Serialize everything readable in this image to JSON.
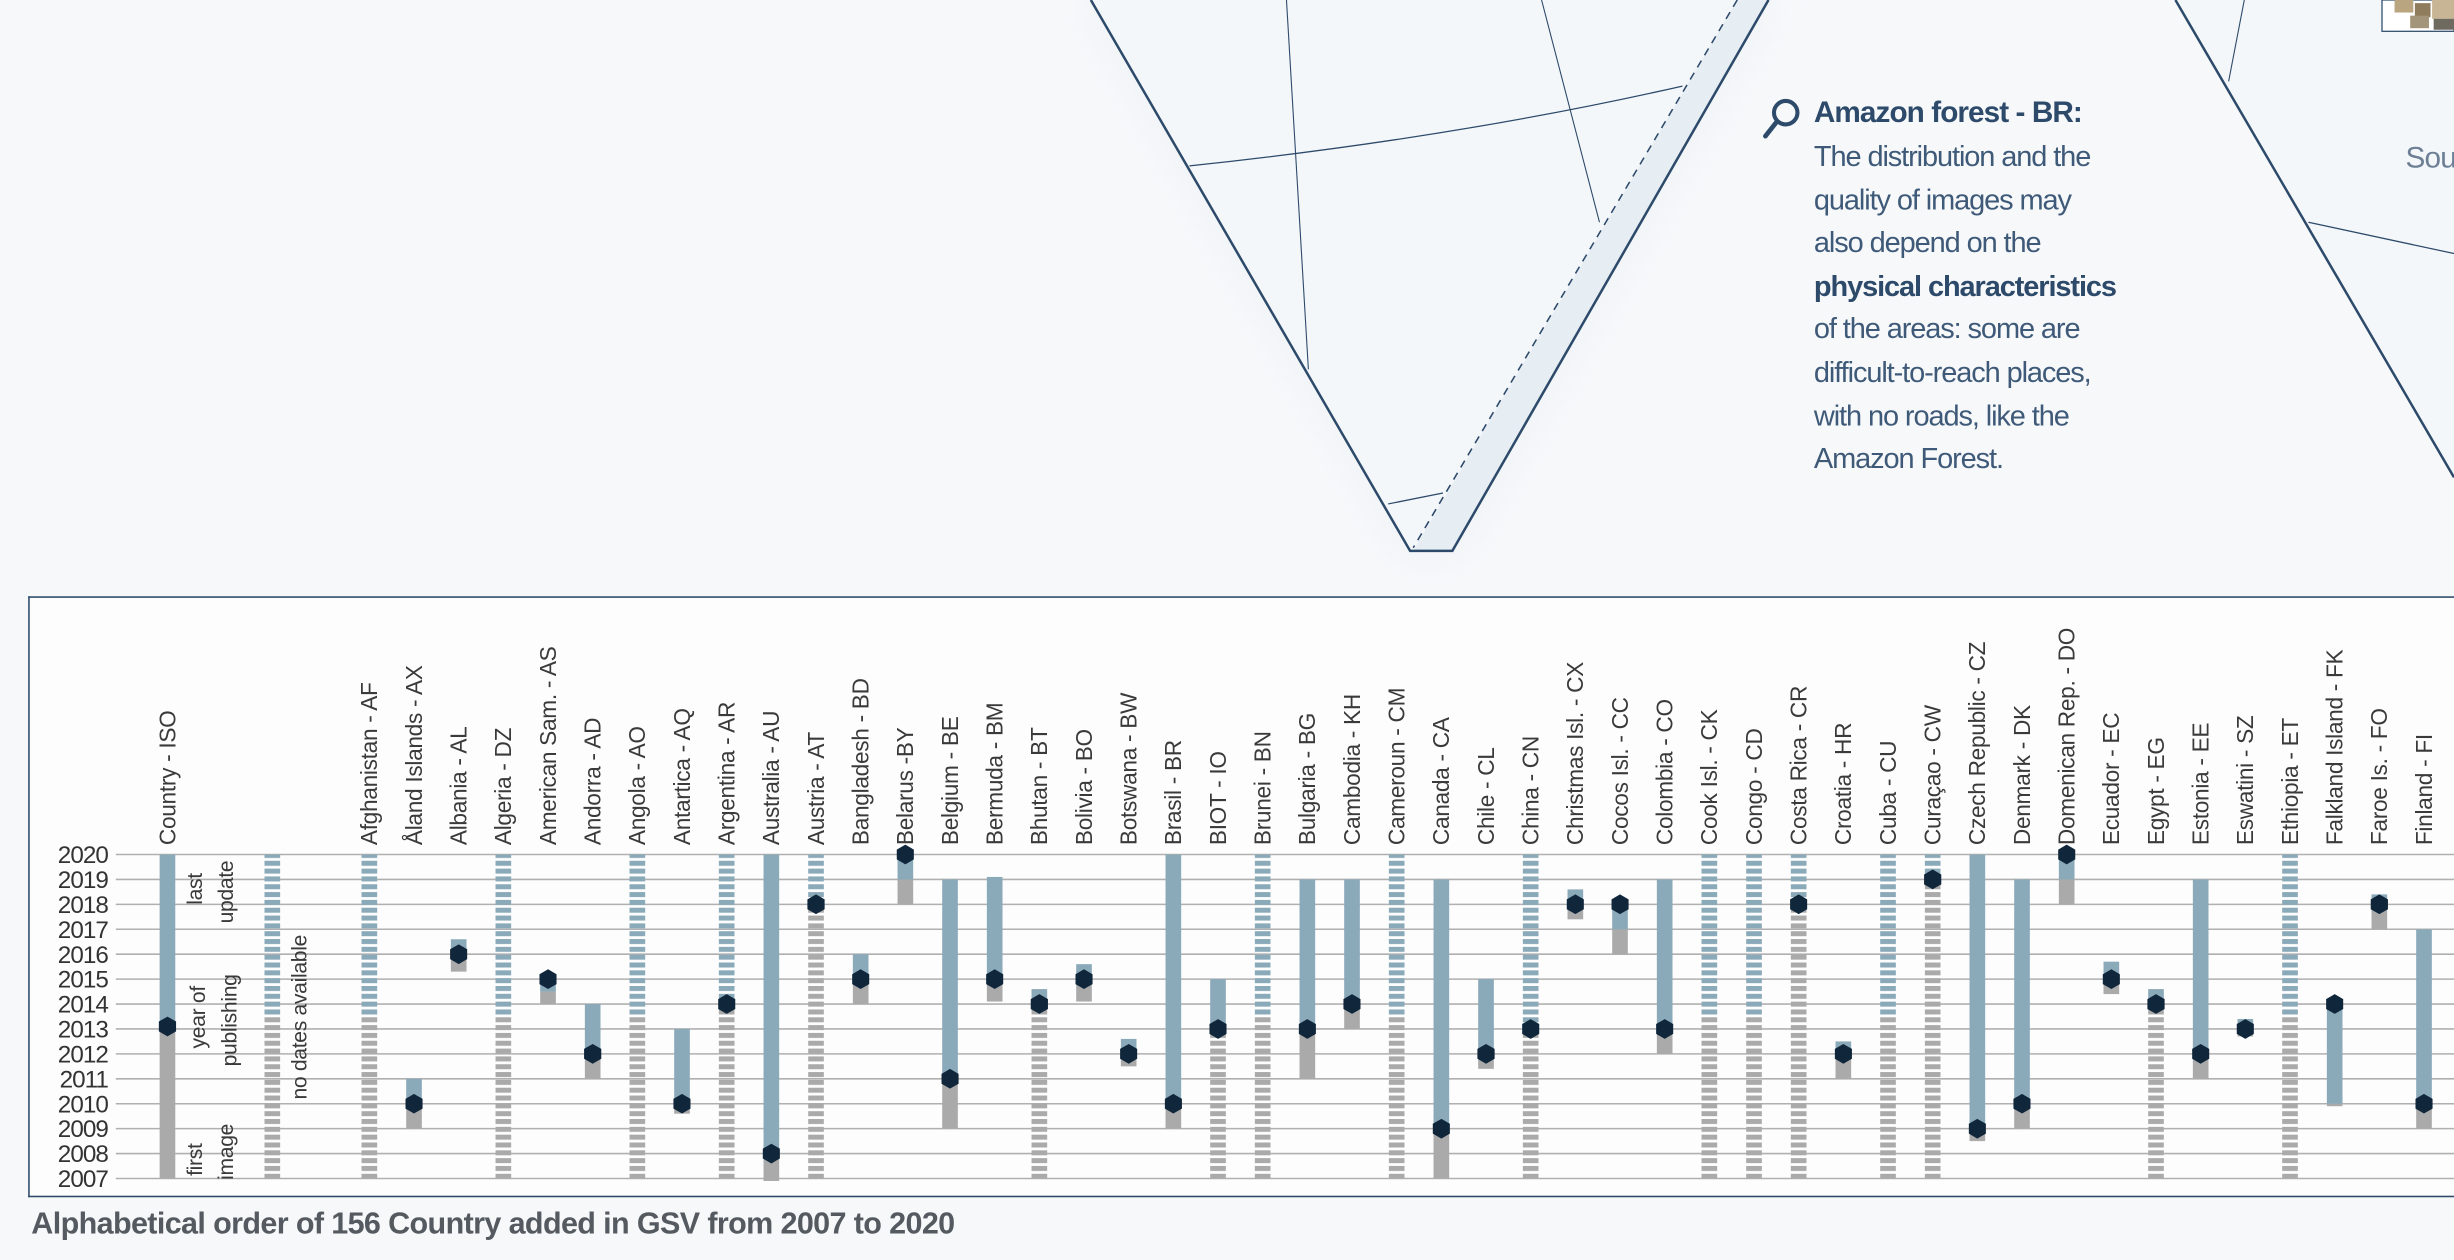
{
  "callout": {
    "icon": "magnifier-icon",
    "title": "Amazon forest - BR:",
    "lines": [
      {
        "text": "The distribution and the",
        "bold": false
      },
      {
        "text": "quality of images may",
        "bold": false
      },
      {
        "text": "also depend on the",
        "bold": false
      },
      {
        "text": "physical characteristics",
        "bold": true
      },
      {
        "text": "of the areas: some are",
        "bold": false
      },
      {
        "text": "difficult-to-reach places,",
        "bold": false
      },
      {
        "text": "with no roads, like the",
        "bold": false
      },
      {
        "text": "Amazon Forest.",
        "bold": false
      }
    ]
  },
  "map_cut_label": "Sou",
  "caption": "Alphabetical order of 156 Country added in GSV from 2007 to 2020",
  "colors": {
    "first_image": "#aaaaaa",
    "last_update": "#8aa9b9",
    "publishing_dot": "#10263a",
    "frame": "#2d4a6a"
  },
  "chart_data": {
    "type": "range-bar",
    "ylim": [
      2007,
      2020
    ],
    "yticks": [
      2020,
      2019,
      2018,
      2017,
      2016,
      2015,
      2014,
      2013,
      2012,
      2011,
      2010,
      2009,
      2008,
      2007
    ],
    "grid": true,
    "legend": {
      "header": "Country - ISO",
      "last_update": [
        "last",
        "update"
      ],
      "year_of_publishing": [
        "year of",
        "publishing"
      ],
      "first_image": [
        "first",
        "image"
      ],
      "no_dates": "no dates available"
    },
    "legend_example": {
      "first": 2007,
      "mid": 2013,
      "last": 2020,
      "pub": 2013.1
    },
    "countries": [
      {
        "label": "Afghanistan - AF",
        "first": 2007,
        "mid": 2013.5,
        "last": 2020,
        "pub": null,
        "gray_dashed": true,
        "blue_dashed": true
      },
      {
        "label": "Åland Islands - AX",
        "first": 2009,
        "mid": 2010,
        "last": 2011,
        "pub": 2010,
        "gray_dashed": false,
        "blue_dashed": false
      },
      {
        "label": "Albania - AL",
        "first": 2015.3,
        "mid": 2016,
        "last": 2016.6,
        "pub": 2016,
        "gray_dashed": false,
        "blue_dashed": false
      },
      {
        "label": "Algeria - DZ",
        "first": 2007,
        "mid": 2013.5,
        "last": 2020,
        "pub": null,
        "gray_dashed": true,
        "blue_dashed": true
      },
      {
        "label": "American Sam. - AS",
        "first": 2014,
        "mid": 2014.5,
        "last": 2015,
        "pub": 2015,
        "gray_dashed": false,
        "blue_dashed": false
      },
      {
        "label": "Andorra - AD",
        "first": 2011,
        "mid": 2012,
        "last": 2014,
        "pub": 2012,
        "gray_dashed": false,
        "blue_dashed": false
      },
      {
        "label": "Angola - AO",
        "first": 2007,
        "mid": 2013.5,
        "last": 2020,
        "pub": null,
        "gray_dashed": true,
        "blue_dashed": true
      },
      {
        "label": "Antartica - AQ",
        "first": 2009.6,
        "mid": 2010,
        "last": 2013,
        "pub": 2010,
        "gray_dashed": false,
        "blue_dashed": false
      },
      {
        "label": "Argentina - AR",
        "first": 2007,
        "mid": 2014,
        "last": 2020,
        "pub": 2014,
        "gray_dashed": true,
        "blue_dashed": true
      },
      {
        "label": "Australia - AU",
        "first": 2006.9,
        "mid": 2008,
        "last": 2020,
        "pub": 2008,
        "gray_dashed": false,
        "blue_dashed": false
      },
      {
        "label": "Austria - AT",
        "first": 2007,
        "mid": 2018,
        "last": 2020,
        "pub": 2018,
        "gray_dashed": true,
        "blue_dashed": true
      },
      {
        "label": "Bangladesh - BD",
        "first": 2014,
        "mid": 2015,
        "last": 2016,
        "pub": 2015,
        "gray_dashed": false,
        "blue_dashed": false
      },
      {
        "label": "Belarus -BY",
        "first": 2018,
        "mid": 2019,
        "last": 2020,
        "pub": 2020,
        "gray_dashed": false,
        "blue_dashed": false
      },
      {
        "label": "Belgium - BE",
        "first": 2009,
        "mid": 2011,
        "last": 2019,
        "pub": 2011,
        "gray_dashed": false,
        "blue_dashed": false
      },
      {
        "label": "Bermuda - BM",
        "first": 2014.1,
        "mid": 2015,
        "last": 2019.1,
        "pub": 2015,
        "gray_dashed": false,
        "blue_dashed": false
      },
      {
        "label": "Bhutan - BT",
        "first": 2007,
        "mid": 2014,
        "last": 2014.6,
        "pub": 2014,
        "gray_dashed": true,
        "blue_dashed": false
      },
      {
        "label": "Bolivia - BO",
        "first": 2014.1,
        "mid": 2015,
        "last": 2015.6,
        "pub": 2015,
        "gray_dashed": false,
        "blue_dashed": false
      },
      {
        "label": "Botswana - BW",
        "first": 2011.5,
        "mid": 2012,
        "last": 2012.6,
        "pub": 2012,
        "gray_dashed": false,
        "blue_dashed": false
      },
      {
        "label": "Brasil - BR",
        "first": 2009,
        "mid": 2010,
        "last": 2020,
        "pub": 2010,
        "gray_dashed": false,
        "blue_dashed": false
      },
      {
        "label": "BIOT - IO",
        "first": 2007,
        "mid": 2012.8,
        "last": 2015,
        "pub": 2013,
        "gray_dashed": true,
        "blue_dashed": false
      },
      {
        "label": "Brunei - BN",
        "first": 2007,
        "mid": 2013.5,
        "last": 2020,
        "pub": null,
        "gray_dashed": true,
        "blue_dashed": true
      },
      {
        "label": "Bulgaria - BG",
        "first": 2011,
        "mid": 2013,
        "last": 2019,
        "pub": 2013,
        "gray_dashed": false,
        "blue_dashed": false
      },
      {
        "label": "Cambodia - KH",
        "first": 2013,
        "mid": 2014,
        "last": 2019,
        "pub": 2014,
        "gray_dashed": false,
        "blue_dashed": false
      },
      {
        "label": "Cameroun - CM",
        "first": 2007,
        "mid": 2013.5,
        "last": 2020,
        "pub": null,
        "gray_dashed": true,
        "blue_dashed": true
      },
      {
        "label": "Canada - CA",
        "first": 2007,
        "mid": 2009,
        "last": 2019,
        "pub": 2009,
        "gray_dashed": false,
        "blue_dashed": false
      },
      {
        "label": "Chile - CL",
        "first": 2011.4,
        "mid": 2012,
        "last": 2015,
        "pub": 2012,
        "gray_dashed": false,
        "blue_dashed": false
      },
      {
        "label": "China - CN",
        "first": 2007,
        "mid": 2013,
        "last": 2020,
        "pub": 2013,
        "gray_dashed": true,
        "blue_dashed": true
      },
      {
        "label": "Christmas Isl. - CX",
        "first": 2017.4,
        "mid": 2018,
        "last": 2018.6,
        "pub": 2018,
        "gray_dashed": false,
        "blue_dashed": false
      },
      {
        "label": "Cocos Isl. - CC",
        "first": 2016,
        "mid": 2017,
        "last": 2018,
        "pub": 2018,
        "gray_dashed": false,
        "blue_dashed": false
      },
      {
        "label": "Colombia - CO",
        "first": 2012,
        "mid": 2013,
        "last": 2019,
        "pub": 2013,
        "gray_dashed": false,
        "blue_dashed": false
      },
      {
        "label": "Cook Isl. - CK",
        "first": 2007,
        "mid": 2013.5,
        "last": 2020,
        "pub": null,
        "gray_dashed": true,
        "blue_dashed": true
      },
      {
        "label": "Congo - CD",
        "first": 2007,
        "mid": 2013.5,
        "last": 2020,
        "pub": null,
        "gray_dashed": true,
        "blue_dashed": true
      },
      {
        "label": "Costa Rica - CR",
        "first": 2007,
        "mid": 2018,
        "last": 2020,
        "pub": 2018,
        "gray_dashed": true,
        "blue_dashed": true
      },
      {
        "label": "Croatia - HR",
        "first": 2011,
        "mid": 2012,
        "last": 2012.5,
        "pub": 2012,
        "gray_dashed": false,
        "blue_dashed": false
      },
      {
        "label": "Cuba - CU",
        "first": 2007,
        "mid": 2013.5,
        "last": 2020,
        "pub": null,
        "gray_dashed": true,
        "blue_dashed": true
      },
      {
        "label": "Curaçao - CW",
        "first": 2007,
        "mid": 2019,
        "last": 2020,
        "pub": 2019,
        "gray_dashed": true,
        "blue_dashed": true
      },
      {
        "label": "Czech Republic - CZ",
        "first": 2008.5,
        "mid": 2009,
        "last": 2020,
        "pub": 2009,
        "gray_dashed": false,
        "blue_dashed": false
      },
      {
        "label": "Denmark - DK",
        "first": 2009,
        "mid": 2010,
        "last": 2019,
        "pub": 2010,
        "gray_dashed": false,
        "blue_dashed": false
      },
      {
        "label": "Domenican Rep. - DO",
        "first": 2018,
        "mid": 2019,
        "last": 2020,
        "pub": 2020,
        "gray_dashed": false,
        "blue_dashed": false
      },
      {
        "label": "Ecuador - EC",
        "first": 2014.4,
        "mid": 2015,
        "last": 2015.7,
        "pub": 2015,
        "gray_dashed": false,
        "blue_dashed": false
      },
      {
        "label": "Egypt - EG",
        "first": 2007,
        "mid": 2014,
        "last": 2014.6,
        "pub": 2014,
        "gray_dashed": true,
        "blue_dashed": false
      },
      {
        "label": "Estonia - EE",
        "first": 2011,
        "mid": 2012,
        "last": 2019,
        "pub": 2012,
        "gray_dashed": false,
        "blue_dashed": false
      },
      {
        "label": "Eswatini - SZ",
        "first": 2012.7,
        "mid": 2013,
        "last": 2013.4,
        "pub": 2013,
        "gray_dashed": false,
        "blue_dashed": false
      },
      {
        "label": "Ethiopia - ET",
        "first": 2007,
        "mid": 2013.5,
        "last": 2020,
        "pub": null,
        "gray_dashed": true,
        "blue_dashed": true
      },
      {
        "label": "Falkland Island - FK",
        "first": 2009.9,
        "mid": 2010,
        "last": 2014,
        "pub": 2014,
        "gray_dashed": false,
        "blue_dashed": false
      },
      {
        "label": "Faroe Is. - FO",
        "first": 2017,
        "mid": 2018,
        "last": 2018.4,
        "pub": 2018,
        "gray_dashed": false,
        "blue_dashed": false
      },
      {
        "label": "Finland - FI",
        "first": 2009,
        "mid": 2010,
        "last": 2017,
        "pub": 2010,
        "gray_dashed": false,
        "blue_dashed": false
      }
    ]
  }
}
